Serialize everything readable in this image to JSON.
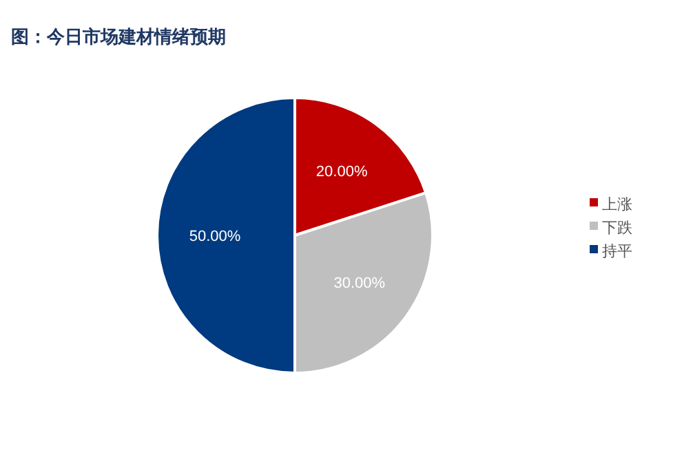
{
  "chart_data": {
    "type": "pie",
    "title": "图：今日市场建材情绪预期",
    "categories": [
      "上涨",
      "下跌",
      "持平"
    ],
    "values": [
      20,
      30,
      50
    ],
    "colors": [
      "#c00000",
      "#bfbfbf",
      "#003a80"
    ],
    "value_labels": [
      "20.00%",
      "30.00%",
      "50.00%"
    ],
    "legend": "right"
  }
}
